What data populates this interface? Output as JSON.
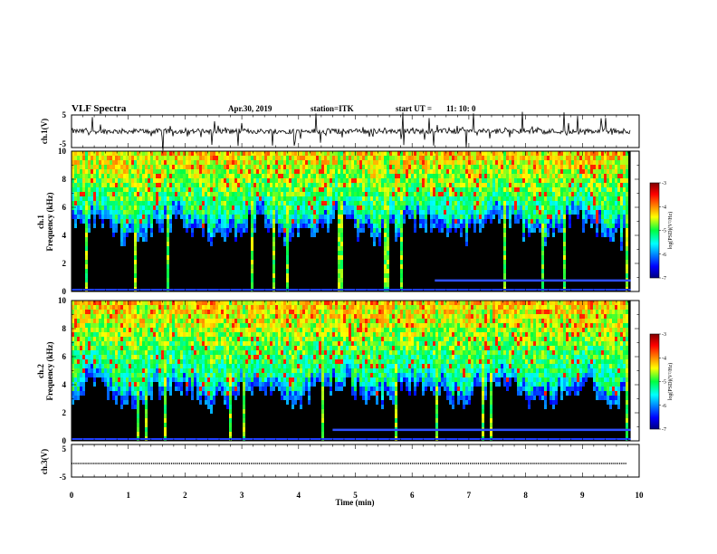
{
  "header": {
    "title": "VLF Spectra",
    "date": "Apr.30, 2019",
    "station": "station=ITK",
    "start_label": "start  UT  =",
    "start_value": "11: 10: 0"
  },
  "chart_data": [
    {
      "type": "line",
      "name": "ch1-waveform",
      "ylabel": "ch.1(V)",
      "ylim": [
        -5,
        5
      ],
      "yticks": [
        "5",
        "-5"
      ],
      "xlim": [
        0,
        10
      ]
    },
    {
      "type": "heatmap",
      "name": "ch1-spectrogram",
      "ylabel": "ch.1",
      "ylabel2": "Frequency (kHz)",
      "ylim": [
        0,
        10
      ],
      "yticks": [
        "10",
        "8",
        "6",
        "4",
        "2",
        "0"
      ],
      "xlim": [
        0,
        10
      ],
      "data_extent_min": 9.85,
      "colorbar": {
        "label": "log(PSD)(V²/Hz)",
        "range": [
          -7,
          -3
        ],
        "ticks": [
          "-3",
          "-4",
          "-5",
          "-6",
          "-7"
        ]
      }
    },
    {
      "type": "heatmap",
      "name": "ch2-spectrogram",
      "ylabel": "ch.2",
      "ylabel2": "Frequency (kHz)",
      "ylim": [
        0,
        10
      ],
      "yticks": [
        "10",
        "8",
        "6",
        "4",
        "2",
        "0"
      ],
      "xlim": [
        0,
        10
      ],
      "data_extent_min": 9.85,
      "colorbar": {
        "label": "log(PSD)(V²/Hz)",
        "range": [
          -7,
          -3
        ],
        "ticks": [
          "-3",
          "-4",
          "-5",
          "-6",
          "-7"
        ]
      }
    },
    {
      "type": "line",
      "name": "ch3-waveform",
      "ylabel": "ch.3(V)",
      "ylim": [
        -5,
        5
      ],
      "yticks": [
        "5",
        "-5"
      ],
      "xlim": [
        0,
        10
      ]
    }
  ],
  "xaxis": {
    "label": "Time (min)",
    "ticks": [
      "0",
      "1",
      "2",
      "3",
      "4",
      "5",
      "6",
      "7",
      "8",
      "9",
      "10"
    ]
  }
}
